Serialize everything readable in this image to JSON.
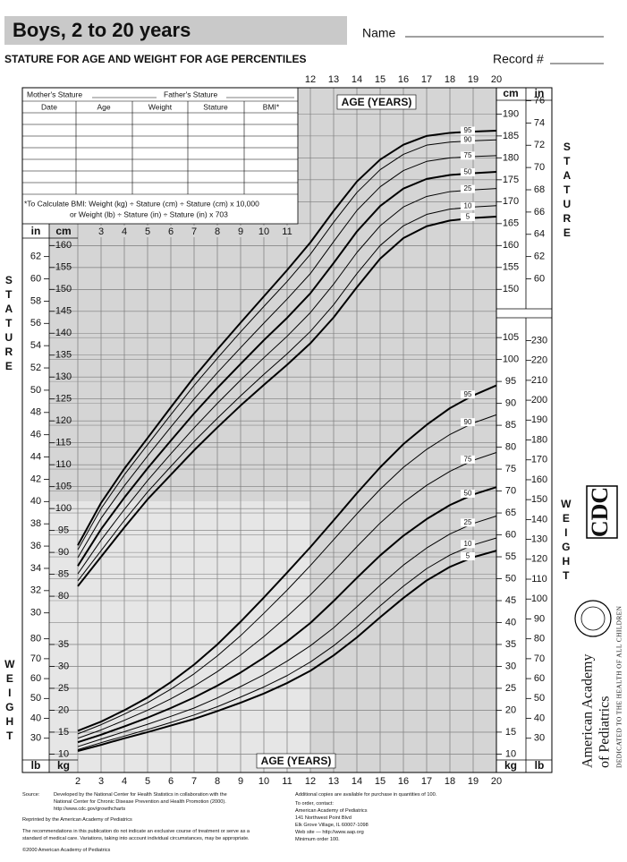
{
  "header": {
    "title": "Boys, 2 to 20 years",
    "name_label": "Name",
    "subtitle": "STATURE FOR AGE AND WEIGHT FOR AGE PERCENTILES",
    "record_label": "Record #"
  },
  "form": {
    "mother": "Mother's Stature",
    "father": "Father's Stature",
    "columns": [
      "Date",
      "Age",
      "Weight",
      "Stature",
      "BMI*"
    ],
    "bmi_note_1": "*To Calculate BMI: Weight (kg) ÷ Stature (cm) ÷ Stature (cm) x 10,000",
    "bmi_note_2": "or Weight (lb) ÷ Stature (in) ÷ Stature (in) x 703"
  },
  "chart_data": {
    "type": "line",
    "xlabel": "AGE (YEARS)",
    "ylabel": "STATURE",
    "y2label": "WEIGHT",
    "x": [
      2,
      3,
      4,
      5,
      6,
      7,
      8,
      9,
      10,
      11,
      12,
      13,
      14,
      15,
      16,
      17,
      18,
      19,
      20
    ],
    "xlim": [
      2,
      20
    ],
    "xticks": [
      2,
      3,
      4,
      5,
      6,
      7,
      8,
      9,
      10,
      11,
      12,
      13,
      14,
      15,
      16,
      17,
      18,
      19,
      20
    ],
    "xticks_top": [
      12,
      13,
      14,
      15,
      16,
      17,
      18,
      19,
      20
    ],
    "xticks_inner": [
      3,
      4,
      5,
      6,
      7,
      8,
      9,
      10,
      11
    ],
    "ylim": [
      40,
      196
    ],
    "y2lim": [
      6,
      162
    ],
    "grid": true,
    "axes": [
      {
        "unit": "in",
        "axis": "y",
        "to_axis": 2.54,
        "side": "left",
        "column": "outer",
        "ticks": [
          30,
          32,
          34,
          36,
          38,
          40,
          42,
          44,
          46,
          48,
          50,
          52,
          54,
          56,
          58,
          60,
          62
        ]
      },
      {
        "unit": "cm",
        "axis": "y",
        "side": "left",
        "column": "inner",
        "ticks": [
          80,
          85,
          90,
          95,
          100,
          105,
          110,
          115,
          120,
          125,
          130,
          135,
          140,
          145,
          150,
          155,
          160
        ]
      },
      {
        "unit": "cm",
        "axis": "y",
        "side": "right",
        "column": "inner",
        "ticks": [
          150,
          155,
          160,
          165,
          170,
          175,
          180,
          185,
          190
        ]
      },
      {
        "unit": "in",
        "axis": "y",
        "to_axis": 2.54,
        "side": "right",
        "column": "outer",
        "ticks": [
          60,
          62,
          64,
          66,
          68,
          70,
          72,
          74,
          76
        ]
      },
      {
        "unit": "lb",
        "axis": "y2",
        "to_axis": 0.45359237,
        "side": "left",
        "column": "outer",
        "ticks": [
          30,
          40,
          50,
          60,
          70,
          80
        ]
      },
      {
        "unit": "kg",
        "axis": "y2",
        "side": "left",
        "column": "inner",
        "ticks": [
          10,
          15,
          20,
          25,
          30,
          35
        ]
      },
      {
        "unit": "kg",
        "axis": "y2",
        "side": "right",
        "column": "inner",
        "ticks": [
          10,
          15,
          20,
          25,
          30,
          35,
          40,
          45,
          50,
          55,
          60,
          65,
          70,
          75,
          80,
          85,
          90,
          95,
          100,
          105
        ]
      },
      {
        "unit": "lb",
        "axis": "y2",
        "to_axis": 0.45359237,
        "side": "right",
        "column": "outer",
        "ticks": [
          30,
          40,
          50,
          60,
          70,
          80,
          90,
          100,
          110,
          120,
          130,
          140,
          150,
          160,
          170,
          180,
          190,
          200,
          210,
          220,
          230
        ]
      }
    ],
    "series": [
      {
        "name": "5",
        "color": "#000000",
        "line_width": 2,
        "values": [
          82.3,
          89.0,
          95.7,
          102.1,
          107.7,
          113.3,
          118.5,
          123.5,
          128.2,
          132.8,
          137.7,
          143.6,
          150.5,
          157.0,
          161.7,
          164.4,
          165.7,
          166.3,
          166.6
        ]
      },
      {
        "name": "10",
        "color": "#000000",
        "line_width": 1,
        "values": [
          83.5,
          90.4,
          97.3,
          103.8,
          109.6,
          115.3,
          120.6,
          125.7,
          130.6,
          135.3,
          140.4,
          146.5,
          153.6,
          160.0,
          164.5,
          167.1,
          168.3,
          168.8,
          169.1
        ]
      },
      {
        "name": "25",
        "color": "#000000",
        "line_width": 1,
        "values": [
          85.1,
          92.8,
          99.8,
          106.4,
          112.5,
          118.4,
          124.0,
          129.3,
          134.4,
          139.3,
          144.7,
          151.2,
          158.4,
          164.5,
          168.8,
          171.2,
          172.3,
          172.7,
          173.0
        ]
      },
      {
        "name": "50",
        "color": "#000000",
        "line_width": 2,
        "values": [
          86.9,
          95.3,
          102.5,
          109.2,
          115.5,
          121.7,
          127.5,
          133.0,
          138.4,
          143.5,
          149.1,
          156.0,
          163.2,
          169.0,
          173.0,
          175.2,
          176.1,
          176.5,
          176.8
        ]
      },
      {
        "name": "75",
        "color": "#000000",
        "line_width": 1,
        "values": [
          88.8,
          97.8,
          105.2,
          112.0,
          118.6,
          125.0,
          131.0,
          136.7,
          142.3,
          147.8,
          153.6,
          160.9,
          168.0,
          173.4,
          177.1,
          179.2,
          180.0,
          180.3,
          180.5
        ]
      },
      {
        "name": "90",
        "color": "#000000",
        "line_width": 1,
        "values": [
          90.6,
          100.0,
          107.7,
          114.6,
          121.4,
          128.1,
          134.3,
          140.3,
          146.1,
          151.8,
          158.0,
          165.3,
          172.1,
          177.3,
          180.8,
          182.9,
          183.6,
          183.9,
          184.1
        ]
      },
      {
        "name": "95",
        "color": "#000000",
        "line_width": 2,
        "values": [
          91.6,
          101.3,
          109.1,
          116.1,
          123.1,
          130.0,
          136.3,
          142.4,
          148.4,
          154.4,
          160.7,
          167.9,
          174.6,
          179.6,
          183.0,
          185.0,
          185.7,
          186.0,
          186.2
        ]
      },
      {
        "name": "5",
        "color": "#000000",
        "line_width": 2,
        "axis": "y2",
        "values": [
          10.7,
          12.1,
          13.6,
          15.0,
          16.5,
          18.0,
          19.8,
          21.7,
          23.8,
          26.2,
          29.0,
          32.5,
          36.6,
          41.2,
          45.6,
          49.6,
          52.7,
          54.9,
          56.4
        ]
      },
      {
        "name": "10",
        "color": "#000000",
        "line_width": 1,
        "axis": "y2",
        "values": [
          11.0,
          12.6,
          14.1,
          15.6,
          17.2,
          18.9,
          20.8,
          23.0,
          25.3,
          27.9,
          31.0,
          34.7,
          39.0,
          43.8,
          48.3,
          52.3,
          55.4,
          57.7,
          59.3
        ]
      },
      {
        "name": "25",
        "color": "#000000",
        "line_width": 1,
        "axis": "y2",
        "values": [
          11.7,
          13.4,
          15.1,
          16.8,
          18.6,
          20.5,
          22.8,
          25.4,
          28.1,
          31.2,
          34.7,
          38.8,
          43.6,
          48.5,
          53.1,
          57.0,
          60.2,
          62.6,
          64.3
        ]
      },
      {
        "name": "50",
        "color": "#000000",
        "line_width": 2,
        "axis": "y2",
        "values": [
          12.7,
          14.4,
          16.3,
          18.3,
          20.5,
          22.9,
          25.6,
          28.6,
          32.0,
          35.7,
          39.9,
          44.9,
          50.2,
          55.3,
          59.8,
          63.6,
          66.8,
          69.2,
          70.9
        ]
      },
      {
        "name": "75",
        "color": "#000000",
        "line_width": 1,
        "axis": "y2",
        "values": [
          13.6,
          15.5,
          17.7,
          20.0,
          22.6,
          25.5,
          28.8,
          32.6,
          36.8,
          41.4,
          46.3,
          51.7,
          57.3,
          62.7,
          67.4,
          71.3,
          74.5,
          77.0,
          78.8
        ]
      },
      {
        "name": "90",
        "color": "#000000",
        "line_width": 1,
        "axis": "y2",
        "values": [
          14.6,
          16.7,
          19.1,
          21.7,
          24.8,
          28.3,
          32.4,
          37.0,
          42.1,
          47.4,
          53.0,
          58.9,
          64.8,
          70.4,
          75.4,
          79.5,
          82.9,
          85.5,
          87.4
        ]
      },
      {
        "name": "95",
        "color": "#000000",
        "line_width": 2,
        "axis": "y2",
        "values": [
          15.3,
          17.4,
          20.0,
          22.9,
          26.4,
          30.4,
          35.0,
          40.2,
          45.7,
          51.4,
          57.2,
          63.3,
          69.5,
          75.4,
          80.7,
          85.1,
          88.9,
          91.8,
          94.1
        ]
      }
    ]
  },
  "footer": {
    "source_label": "Source:",
    "source_lines": [
      "Developed by the National Center for Health Statistics in collaboration with the",
      "National Center for Chronic Disease Prevention and Health Promotion (2000).",
      "http://www.cdc.gov/growthcharts"
    ],
    "reprinted": "Reprinted by the American Academy of Pediatrics",
    "recommendation_lines": [
      "The recommendations in this publication do not indicate an exclusive course of treatment or serve as a",
      "standard of medical care. Variations, taking into account individual circumstances, may be appropriate."
    ],
    "copyright": "©2000 American Academy of Pediatrics",
    "order_lines": [
      "Additional copies are available for purchase in quantities of 100.",
      "To order, contact:",
      "American Academy of Pediatrics",
      "141 Northwest Point Blvd",
      "Elk Grove Village, IL 60007-1098",
      "Web site — http://www.aap.org",
      "Minimum order 100."
    ]
  },
  "logos": {
    "cdc": "CDC",
    "aap_line_1": "American Academy",
    "aap_line_2": "of Pediatrics",
    "motto": "DEDICATED TO THE HEALTH OF ALL CHILDREN"
  }
}
